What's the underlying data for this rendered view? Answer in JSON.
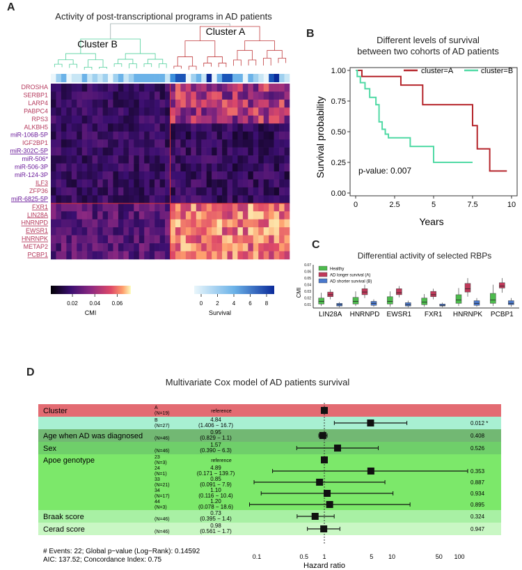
{
  "panelA": {
    "letter": "A",
    "title": "Activity of post-transcriptional programs in AD patients",
    "clusterB_label": "Cluster B",
    "clusterA_label": "Cluster A",
    "genes": [
      {
        "name": "DROSHA",
        "type": "rbp",
        "underline": false
      },
      {
        "name": "SERBP1",
        "type": "rbp",
        "underline": false
      },
      {
        "name": "LARP4",
        "type": "rbp",
        "underline": false
      },
      {
        "name": "PABPC4",
        "type": "rbp",
        "underline": false
      },
      {
        "name": "RPS3",
        "type": "rbp",
        "underline": false
      },
      {
        "name": "ALKBH5",
        "type": "rbp",
        "underline": false
      },
      {
        "name": "miR-106B-5P",
        "type": "mir",
        "underline": false
      },
      {
        "name": "IGF2BP1",
        "type": "rbp",
        "underline": false
      },
      {
        "name": "miR-302C-5P",
        "type": "mir",
        "underline": true
      },
      {
        "name": "miR-506*",
        "type": "mir",
        "underline": false
      },
      {
        "name": "miR-506-3P",
        "type": "mir",
        "underline": false
      },
      {
        "name": "miR-124-3P",
        "type": "mir",
        "underline": false
      },
      {
        "name": "ILF3",
        "type": "rbp",
        "underline": true
      },
      {
        "name": "ZFP36",
        "type": "rbp",
        "underline": false
      },
      {
        "name": "miR-6825-5P",
        "type": "mir",
        "underline": true
      },
      {
        "name": "FXR1",
        "type": "rbp",
        "underline": true
      },
      {
        "name": "LIN28A",
        "type": "rbp",
        "underline": true
      },
      {
        "name": "HNRNPD",
        "type": "rbp",
        "underline": true
      },
      {
        "name": "EWSR1",
        "type": "rbp",
        "underline": true
      },
      {
        "name": "HNRNPK",
        "type": "rbp",
        "underline": true
      },
      {
        "name": "METAP2",
        "type": "rbp",
        "underline": false
      },
      {
        "name": "PCBP1",
        "type": "rbp",
        "underline": true
      }
    ],
    "cmi_legend": {
      "label": "CMI",
      "ticks": [
        "0.02",
        "0.04",
        "0.06"
      ]
    },
    "survival_legend": {
      "label": "Survival",
      "ticks": [
        "0",
        "2",
        "4",
        "6",
        "8"
      ]
    },
    "colors": {
      "clusterA": "#c0393b",
      "clusterB": "#4ccf9a",
      "rbp": "#b5395c",
      "mir": "#6a1a9a"
    }
  },
  "panelB": {
    "letter": "B",
    "title_line1": "Different levels of survival",
    "title_line2": "between two cohorts of AD patients",
    "legend_a": "cluster=A",
    "legend_b": "cluster=B",
    "pvalue": "p-value: 0.007",
    "ylabel": "Survival probability",
    "xlabel": "Years",
    "yticks": [
      "0.00",
      "0.25",
      "0.50",
      "0.75",
      "1.00"
    ],
    "xticks": [
      "0",
      "2.5",
      "5",
      "7.5",
      "10"
    ],
    "chart_data": {
      "type": "line",
      "title": "Different levels of survival between two cohorts of AD patients",
      "xlabel": "Years",
      "ylabel": "Survival probability",
      "xlim": [
        0,
        10
      ],
      "ylim": [
        0,
        1
      ],
      "series": [
        {
          "name": "cluster=A",
          "color": "#b5242a",
          "x": [
            0,
            0.4,
            0.4,
            2.9,
            2.9,
            4.3,
            4.3,
            7.5,
            7.5,
            7.8,
            7.8,
            8.6,
            8.6,
            9.7
          ],
          "y": [
            1,
            1,
            0.95,
            0.95,
            0.88,
            0.88,
            0.72,
            0.72,
            0.55,
            0.55,
            0.36,
            0.36,
            0.18,
            0.18
          ]
        },
        {
          "name": "cluster=B",
          "color": "#4fd9a4",
          "x": [
            0,
            0.1,
            0.1,
            0.3,
            0.3,
            0.6,
            0.6,
            0.9,
            0.9,
            1.3,
            1.3,
            1.5,
            1.5,
            1.7,
            1.7,
            1.9,
            1.9,
            2.1,
            2.1,
            3.5,
            3.5,
            5,
            5,
            7.5
          ],
          "y": [
            1,
            1,
            0.95,
            0.95,
            0.9,
            0.9,
            0.85,
            0.85,
            0.78,
            0.78,
            0.72,
            0.72,
            0.58,
            0.58,
            0.52,
            0.52,
            0.48,
            0.48,
            0.45,
            0.45,
            0.38,
            0.38,
            0.25,
            0.25
          ]
        }
      ]
    }
  },
  "panelC": {
    "letter": "C",
    "title": "Differential activity of selected RBPs",
    "ylabel": "CMI",
    "yticks": [
      "0.01",
      "0.02",
      "0.03",
      "0.04",
      "0.05",
      "0.06",
      "0.07"
    ],
    "legend": [
      "Healthy",
      "AD longer survival (A)",
      "AD shorter survival (B)"
    ],
    "chart_data": {
      "type": "box",
      "categories": [
        "LIN28A",
        "HNRNPD",
        "EWSR1",
        "FXR1",
        "HNRNPK",
        "PCBP1"
      ],
      "ylim": [
        0.005,
        0.07
      ],
      "series": [
        {
          "name": "Healthy",
          "color": "#4dbb4d",
          "q": [
            [
              0.008,
              0.011,
              0.015,
              0.02,
              0.028
            ],
            [
              0.008,
              0.011,
              0.015,
              0.021,
              0.03
            ],
            [
              0.007,
              0.011,
              0.015,
              0.022,
              0.03
            ],
            [
              0.007,
              0.01,
              0.014,
              0.02,
              0.026
            ],
            [
              0.008,
              0.012,
              0.017,
              0.025,
              0.035
            ],
            [
              0.008,
              0.012,
              0.017,
              0.027,
              0.04
            ]
          ]
        },
        {
          "name": "AD longer survival (A)",
          "color": "#c0395a",
          "q": [
            [
              0.018,
              0.022,
              0.025,
              0.029,
              0.033
            ],
            [
              0.02,
              0.025,
              0.029,
              0.034,
              0.04
            ],
            [
              0.021,
              0.025,
              0.028,
              0.034,
              0.038
            ],
            [
              0.018,
              0.022,
              0.025,
              0.03,
              0.034
            ],
            [
              0.022,
              0.029,
              0.034,
              0.042,
              0.05
            ],
            [
              0.028,
              0.035,
              0.038,
              0.043,
              0.05
            ]
          ]
        },
        {
          "name": "AD shorter survival (B)",
          "color": "#4a78cc",
          "q": [
            [
              0.006,
              0.008,
              0.01,
              0.012,
              0.014
            ],
            [
              0.007,
              0.009,
              0.012,
              0.015,
              0.018
            ],
            [
              0.006,
              0.008,
              0.01,
              0.013,
              0.016
            ],
            [
              0.006,
              0.008,
              0.009,
              0.011,
              0.013
            ],
            [
              0.007,
              0.009,
              0.012,
              0.016,
              0.02
            ],
            [
              0.007,
              0.01,
              0.012,
              0.016,
              0.02
            ]
          ]
        }
      ]
    }
  },
  "panelD": {
    "letter": "D",
    "title": "Multivariate Cox model of AD patients survival",
    "rows": [
      {
        "var": "Cluster",
        "level": "A",
        "n": "(N=19)",
        "hr": "reference",
        "ci": "",
        "p": "",
        "est": 1,
        "lo": null,
        "hi": null,
        "bg": "#e36b72"
      },
      {
        "var": "",
        "level": "B",
        "n": "(N=27)",
        "hr": "4.84",
        "ci": "(1.406 − 16.7)",
        "p": "0.012 *",
        "est": 4.84,
        "lo": 1.406,
        "hi": 16.7,
        "bg": "#a8f0d2"
      },
      {
        "var": "Age when AD was diagnosed",
        "level": "",
        "n": "(N=46)",
        "hr": "0.95",
        "ci": "(0.829 − 1.1)",
        "p": "0.408",
        "est": 0.95,
        "lo": 0.829,
        "hi": 1.1,
        "bg": "#72b873"
      },
      {
        "var": "Sex",
        "level": "",
        "n": "(N=46)",
        "hr": "1.57",
        "ci": "(0.390 − 6.3)",
        "p": "0.526",
        "est": 1.57,
        "lo": 0.39,
        "hi": 6.3,
        "bg": "#6fcf6a"
      },
      {
        "var": "Apoe genotype",
        "level": "23",
        "n": "(N=3)",
        "hr": "reference",
        "ci": "",
        "p": "",
        "est": 1,
        "lo": null,
        "hi": null,
        "bg": "#7ce86a"
      },
      {
        "var": "",
        "level": "24",
        "n": "(N=1)",
        "hr": "4.89",
        "ci": "(0.171 − 139.7)",
        "p": "0.353",
        "est": 4.89,
        "lo": 0.171,
        "hi": 139.7,
        "bg": "#7ce86a"
      },
      {
        "var": "",
        "level": "33",
        "n": "(N=21)",
        "hr": "0.85",
        "ci": "(0.091 − 7.9)",
        "p": "0.887",
        "est": 0.85,
        "lo": 0.091,
        "hi": 7.9,
        "bg": "#7ce86a"
      },
      {
        "var": "",
        "level": "34",
        "n": "(N=17)",
        "hr": "1.10",
        "ci": "(0.116 − 10.4)",
        "p": "0.934",
        "est": 1.1,
        "lo": 0.116,
        "hi": 10.4,
        "bg": "#7ce86a"
      },
      {
        "var": "",
        "level": "44",
        "n": "(N=3)",
        "hr": "1.20",
        "ci": "(0.078 − 18.6)",
        "p": "0.895",
        "est": 1.2,
        "lo": 0.078,
        "hi": 18.6,
        "bg": "#7ce86a"
      },
      {
        "var": "Braak score",
        "level": "",
        "n": "(N=46)",
        "hr": "0.73",
        "ci": "(0.395 − 1.4)",
        "p": "0.324",
        "est": 0.73,
        "lo": 0.395,
        "hi": 1.4,
        "bg": "#a8f0a4"
      },
      {
        "var": "Cerad score",
        "level": "",
        "n": "(N=46)",
        "hr": "0.98",
        "ci": "(0.561 − 1.7)",
        "p": "0.947",
        "est": 0.98,
        "lo": 0.561,
        "hi": 1.7,
        "bg": "#c9f7c4"
      }
    ],
    "footer1": "# Events: 22; Global p−value (Log−Rank): 0.14592",
    "footer2": "AIC: 137.52; Concordance Index: 0.75",
    "xlabel": "Hazard ratio",
    "xticks": [
      "0.1",
      "0.5",
      "1",
      "5",
      "10",
      "50",
      "100"
    ]
  }
}
